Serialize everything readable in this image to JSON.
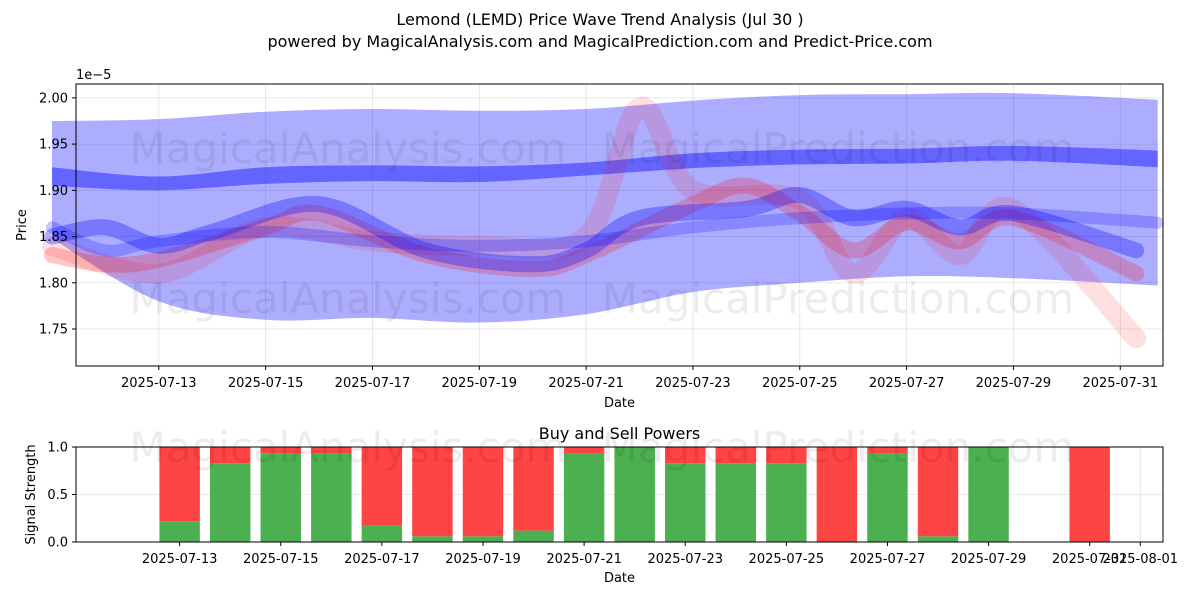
{
  "title_line1": "Lemond (LEMD) Price Wave Trend Analysis (Jul 30 )",
  "title_line2": "powered by MagicalAnalysis.com and MagicalPrediction.com and Predict-Price.com",
  "watermarks": [
    "MagicalAnalysis.com",
    "MagicalPrediction.com"
  ],
  "colors": {
    "blue_band": "#0000ff",
    "red_band": "#ff0000",
    "buy": "#4caf50",
    "sell": "#ff4444"
  },
  "chart_data": [
    {
      "type": "area",
      "title": "",
      "xlabel": "Date",
      "ylabel": "Price",
      "y_scale_label": "1e−5",
      "xlim": [
        "2025-07-11",
        "2025-08-01"
      ],
      "ylim": [
        1.71,
        2.015
      ],
      "x_ticks": [
        "2025-07-13",
        "2025-07-15",
        "2025-07-17",
        "2025-07-19",
        "2025-07-21",
        "2025-07-23",
        "2025-07-25",
        "2025-07-27",
        "2025-07-29",
        "2025-07-31"
      ],
      "y_ticks": [
        "1.75",
        "1.80",
        "1.85",
        "1.90",
        "1.95",
        "2.00"
      ],
      "grid": true,
      "blue_bands": [
        {
          "name": "outer band",
          "x": [
            "2025-07-11",
            "2025-07-13",
            "2025-07-15",
            "2025-07-17",
            "2025-07-19",
            "2025-07-21",
            "2025-07-23",
            "2025-07-25",
            "2025-07-27",
            "2025-07-29",
            "2025-07-31.7"
          ],
          "upper": [
            1.975,
            1.977,
            1.985,
            1.988,
            1.986,
            1.988,
            1.997,
            2.003,
            2.004,
            2.005,
            1.998
          ],
          "lower": [
            1.848,
            1.78,
            1.76,
            1.762,
            1.757,
            1.766,
            1.79,
            1.8,
            1.807,
            1.805,
            1.797
          ]
        },
        {
          "name": "trend line",
          "x": [
            "2025-07-11",
            "2025-07-13",
            "2025-07-15",
            "2025-07-17",
            "2025-07-19",
            "2025-07-21",
            "2025-07-23",
            "2025-07-25",
            "2025-07-27",
            "2025-07-29",
            "2025-07-31.7"
          ],
          "upper": [
            1.925,
            1.915,
            1.925,
            1.927,
            1.926,
            1.93,
            1.94,
            1.944,
            1.945,
            1.948,
            1.943
          ],
          "lower": [
            1.905,
            1.9,
            1.907,
            1.91,
            1.909,
            1.916,
            1.924,
            1.928,
            1.929,
            1.932,
            1.925
          ]
        }
      ],
      "blue_waves": [
        {
          "x": [
            "2025-07-11",
            "2025-07-12",
            "2025-07-13",
            "2025-07-14",
            "2025-07-16",
            "2025-07-18",
            "2025-07-20",
            "2025-07-21",
            "2025-07-22",
            "2025-07-24",
            "2025-07-25",
            "2025-07-26",
            "2025-07-27",
            "2025-07-28",
            "2025-07-29",
            "2025-07-31.3"
          ],
          "y": [
            1.85,
            1.86,
            1.84,
            1.855,
            1.885,
            1.835,
            1.82,
            1.835,
            1.87,
            1.88,
            1.895,
            1.87,
            1.88,
            1.86,
            1.875,
            1.835
          ]
        },
        {
          "x": [
            "2025-07-11",
            "2025-07-12",
            "2025-07-13",
            "2025-07-15",
            "2025-07-17",
            "2025-07-19",
            "2025-07-21",
            "2025-07-23",
            "2025-07-25",
            "2025-07-27",
            "2025-07-29",
            "2025-07-31.7"
          ],
          "y": [
            1.86,
            1.835,
            1.845,
            1.855,
            1.845,
            1.84,
            1.845,
            1.86,
            1.87,
            1.875,
            1.875,
            1.865
          ]
        }
      ],
      "red_waves": [
        {
          "x": [
            "2025-07-11",
            "2025-07-12",
            "2025-07-13",
            "2025-07-15",
            "2025-07-16",
            "2025-07-18",
            "2025-07-20",
            "2025-07-21",
            "2025-07-23",
            "2025-07-24",
            "2025-07-25",
            "2025-07-26",
            "2025-07-27",
            "2025-07-28",
            "2025-07-29",
            "2025-07-31.3"
          ],
          "y": [
            1.83,
            1.82,
            1.825,
            1.86,
            1.875,
            1.83,
            1.815,
            1.83,
            1.885,
            1.905,
            1.875,
            1.835,
            1.865,
            1.845,
            1.87,
            1.81
          ]
        },
        {
          "x": [
            "2025-07-11",
            "2025-07-13",
            "2025-07-15",
            "2025-07-17",
            "2025-07-19",
            "2025-07-21",
            "2025-07-22",
            "2025-07-23",
            "2025-07-25",
            "2025-07-26",
            "2025-07-27",
            "2025-07-28",
            "2025-07-29",
            "2025-07-31.3"
          ],
          "y": [
            1.84,
            1.81,
            1.86,
            1.845,
            1.84,
            1.85,
            1.99,
            1.9,
            1.89,
            1.81,
            1.87,
            1.83,
            1.88,
            1.74
          ]
        }
      ]
    },
    {
      "type": "bar",
      "title": "Buy and Sell Powers",
      "xlabel": "Date",
      "ylabel": "Signal Strength",
      "xlim": [
        "2025-07-11",
        "2025-08-01"
      ],
      "ylim": [
        0,
        1.0
      ],
      "x_ticks": [
        "2025-07-13",
        "2025-07-15",
        "2025-07-17",
        "2025-07-19",
        "2025-07-21",
        "2025-07-23",
        "2025-07-25",
        "2025-07-27",
        "2025-07-29",
        "2025-07-31",
        "2025-08-01"
      ],
      "y_ticks": [
        "0.0",
        "0.5",
        "1.0"
      ],
      "categories": [
        "2025-07-13",
        "2025-07-14",
        "2025-07-15",
        "2025-07-16",
        "2025-07-17",
        "2025-07-18",
        "2025-07-19",
        "2025-07-20",
        "2025-07-21",
        "2025-07-22",
        "2025-07-23",
        "2025-07-24",
        "2025-07-25",
        "2025-07-26",
        "2025-07-27",
        "2025-07-28",
        "2025-07-29",
        "2025-07-31"
      ],
      "series": [
        {
          "name": "Buy",
          "values": [
            0.22,
            0.83,
            0.93,
            0.93,
            0.17,
            0.06,
            0.06,
            0.12,
            0.93,
            1.0,
            0.83,
            0.83,
            0.83,
            0.0,
            0.93,
            0.06,
            1.0,
            0.0
          ]
        },
        {
          "name": "Sell",
          "values": [
            0.78,
            0.17,
            0.07,
            0.07,
            0.83,
            0.94,
            0.94,
            0.88,
            0.07,
            0.0,
            0.17,
            0.17,
            0.17,
            1.0,
            0.07,
            0.94,
            0.0,
            1.0
          ]
        }
      ]
    }
  ]
}
